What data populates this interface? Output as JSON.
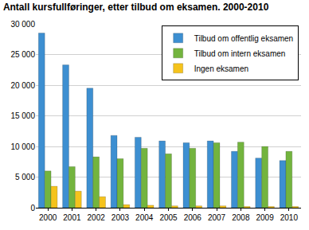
{
  "chart_data": {
    "type": "bar",
    "title": "Antall kursfullføringer, etter tilbud om eksamen. 2000-2010",
    "categories": [
      "2000",
      "2001",
      "2002",
      "2003",
      "2004",
      "2005",
      "2006",
      "2007",
      "2008",
      "2009",
      "2010"
    ],
    "series": [
      {
        "name": "Tilbud om offentlig eksamen",
        "color": "#3d8fd1",
        "values": [
          28500,
          23300,
          19500,
          11800,
          11500,
          10900,
          10600,
          10900,
          9200,
          8100,
          7700
        ]
      },
      {
        "name": "Tilbud om intern eksamen",
        "color": "#73b43e",
        "values": [
          6000,
          6700,
          8300,
          8000,
          9700,
          8800,
          9700,
          10600,
          10700,
          10000,
          9200
        ]
      },
      {
        "name": "Ingen eksamen",
        "color": "#f5c31c",
        "values": [
          3500,
          2700,
          1800,
          500,
          400,
          300,
          300,
          300,
          200,
          200,
          200
        ]
      }
    ],
    "ylim": [
      0,
      30000
    ],
    "yticks": [
      0,
      {
        "value": 5000,
        "label": "5 000"
      },
      {
        "value": 10000,
        "label": "10 000"
      },
      {
        "value": 15000,
        "label": "15 000"
      },
      {
        "value": 20000,
        "label": "20 000"
      },
      {
        "value": 25000,
        "label": "25 000"
      },
      {
        "value": 30000,
        "label": "30 000"
      }
    ],
    "grid": true,
    "legend": "upper right"
  }
}
